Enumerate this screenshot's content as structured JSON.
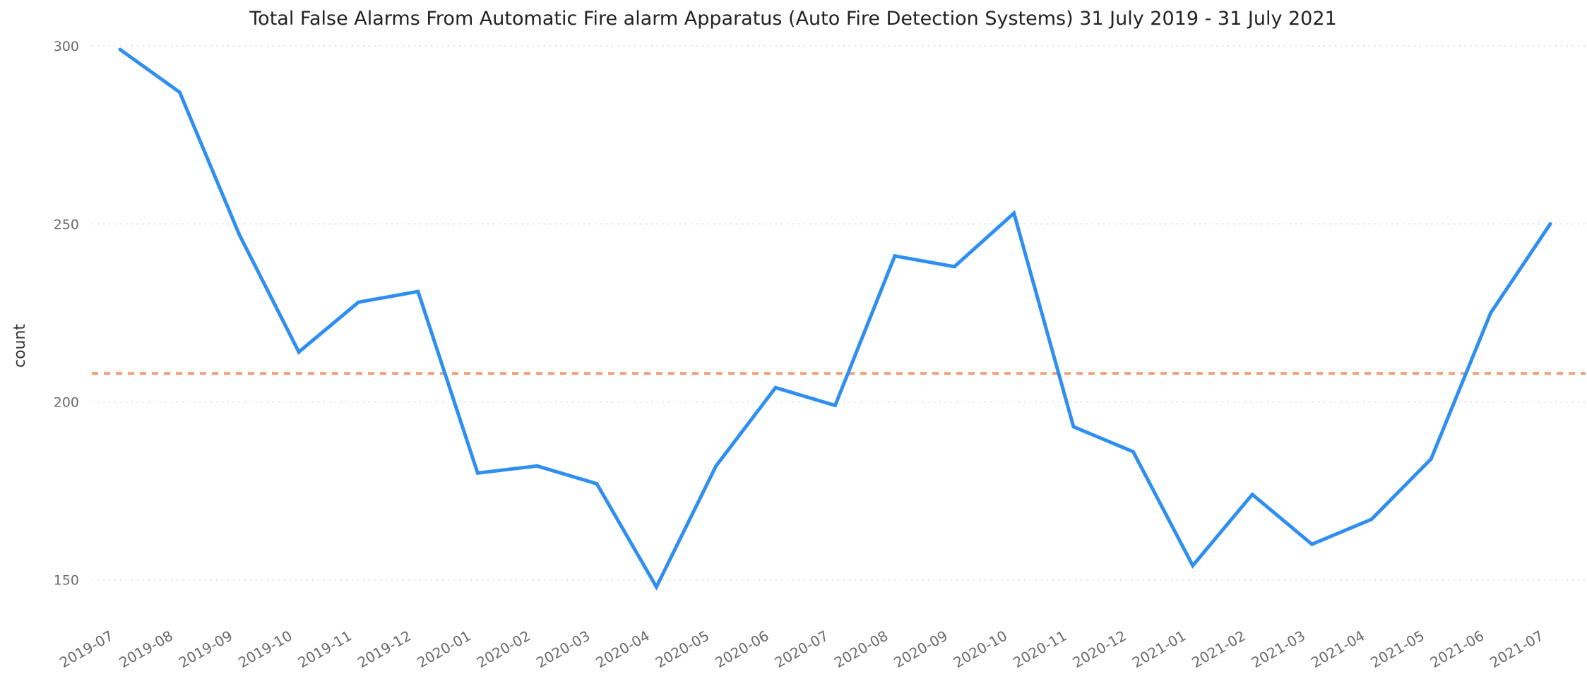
{
  "chart_data": {
    "type": "line",
    "title": "Total False Alarms From Automatic Fire alarm Apparatus (Auto Fire Detection Systems) 31 July 2019 - 31 July 2021",
    "xlabel": "",
    "ylabel": "count",
    "categories": [
      "2019-07",
      "2019-08",
      "2019-09",
      "2019-10",
      "2019-11",
      "2019-12",
      "2020-01",
      "2020-02",
      "2020-03",
      "2020-04",
      "2020-05",
      "2020-06",
      "2020-07",
      "2020-08",
      "2020-09",
      "2020-10",
      "2020-11",
      "2020-12",
      "2021-01",
      "2021-02",
      "2021-03",
      "2021-04",
      "2021-05",
      "2021-06",
      "2021-07"
    ],
    "series": [
      {
        "values": [
          299,
          287,
          247,
          214,
          228,
          231,
          180,
          182,
          177,
          148,
          182,
          204,
          199,
          241,
          238,
          253,
          193,
          186,
          154,
          174,
          160,
          167,
          184,
          225,
          250
        ],
        "color": "#2f8ff0"
      }
    ],
    "reference_line": {
      "value": 208,
      "color": "#f4a07a",
      "style": "dashed"
    },
    "yticks": [
      150,
      200,
      250,
      300
    ],
    "ylim": [
      142,
      302
    ],
    "grid": true,
    "grid_color": "#e3e3e3",
    "legend": "none"
  }
}
